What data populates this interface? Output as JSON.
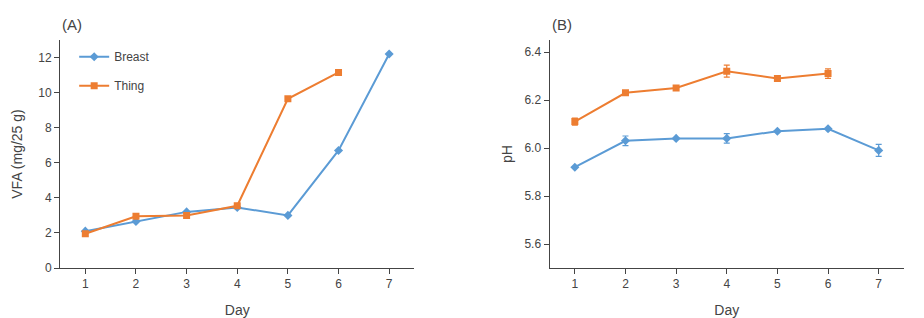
{
  "chart_data": [
    {
      "type": "line",
      "title": "(A)",
      "x_label": "Day",
      "y_label": "VFA (mg/25 g)",
      "x": [
        1,
        2,
        3,
        4,
        5,
        6,
        7
      ],
      "series": [
        {
          "name": "Breast",
          "color": "#5B9BD5",
          "marker": "diamond",
          "values": [
            2.1,
            2.65,
            3.2,
            3.45,
            3.0,
            6.7,
            12.2
          ]
        },
        {
          "name": "Thing",
          "color": "#ED7D31",
          "marker": "square",
          "values": [
            1.95,
            2.95,
            3.0,
            3.55,
            9.65,
            11.15,
            null
          ]
        }
      ],
      "xlim": [
        0.5,
        7.5
      ],
      "xticks": [
        1,
        2,
        3,
        4,
        5,
        6,
        7
      ],
      "ylim": [
        0,
        13
      ],
      "yticks": [
        0,
        2,
        4,
        6,
        8,
        10,
        12
      ],
      "grid": false,
      "legend": "upper left"
    },
    {
      "type": "line",
      "title": "(B)",
      "x_label": "Day",
      "y_label": "pH",
      "x": [
        1,
        2,
        3,
        4,
        5,
        6,
        7
      ],
      "series": [
        {
          "name": "Breast",
          "color": "#5B9BD5",
          "marker": "diamond",
          "values": [
            5.92,
            6.03,
            6.04,
            6.04,
            6.07,
            6.08,
            5.99
          ],
          "errors": [
            0.0,
            0.02,
            0.0,
            0.02,
            0.0,
            0.0,
            0.025
          ]
        },
        {
          "name": "Thing",
          "color": "#ED7D31",
          "marker": "square",
          "values": [
            6.11,
            6.23,
            6.25,
            6.32,
            6.29,
            6.31,
            null
          ],
          "errors": [
            0.015,
            0.0,
            0.0,
            0.025,
            0.01,
            0.02,
            0.0
          ]
        }
      ],
      "xlim": [
        0.5,
        7.5
      ],
      "xticks": [
        1,
        2,
        3,
        4,
        5,
        6,
        7
      ],
      "ylim": [
        5.5,
        6.45
      ],
      "yticks": [
        5.6,
        5.8,
        {
          "value": 6.0,
          "label": "6.0"
        },
        6.2,
        6.4
      ],
      "grid": false
    }
  ]
}
